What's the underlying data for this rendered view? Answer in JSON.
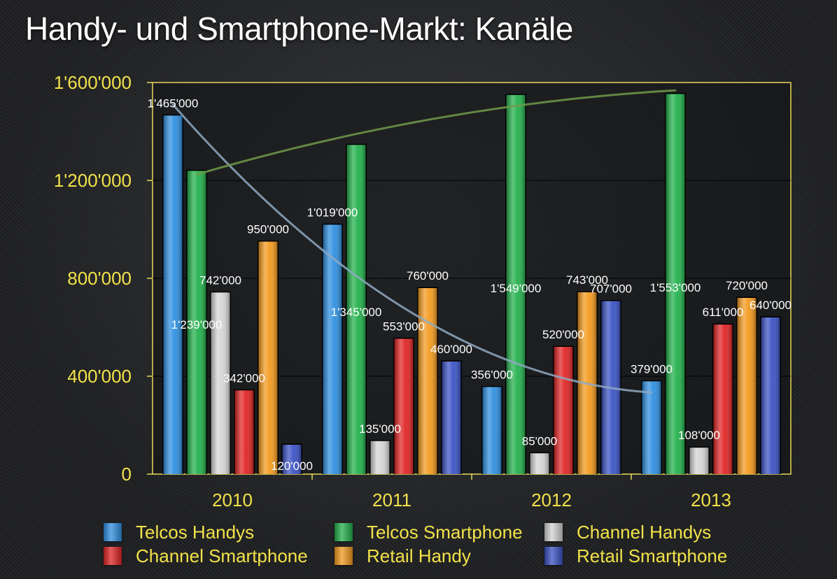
{
  "chart_data": {
    "type": "bar",
    "title": "Handy- und Smartphone-Markt: Kanäle",
    "categories": [
      "2010",
      "2011",
      "2012",
      "2013"
    ],
    "ylim": [
      0,
      1600000
    ],
    "yticks": [
      {
        "value": 0,
        "label": "0"
      },
      {
        "value": 400000,
        "label": "400'000"
      },
      {
        "value": 800000,
        "label": "800'000"
      },
      {
        "value": 1200000,
        "label": "1'200'000"
      },
      {
        "value": 1600000,
        "label": "1'600'000"
      }
    ],
    "grid": true,
    "legend_position": "bottom",
    "series": [
      {
        "name": "Telcos Handys",
        "color": "#2f8fe0",
        "values": [
          1465000,
          1019000,
          356000,
          379000
        ],
        "labels": [
          "1'465'000",
          "1'019'000",
          "356'000",
          "379'000"
        ]
      },
      {
        "name": "Telcos Smartphone",
        "color": "#22b04b",
        "values": [
          1239000,
          1345000,
          1549000,
          1553000
        ],
        "labels": [
          "1'239'000",
          "1'345'000",
          "1'549'000",
          "1'553'000"
        ]
      },
      {
        "name": "Channel Handys",
        "color": "#d4d4d4",
        "values": [
          742000,
          135000,
          85000,
          108000
        ],
        "labels": [
          "742'000",
          "135'000",
          "85'000",
          "108'000"
        ]
      },
      {
        "name": "Channel Smartphone",
        "color": "#e02424",
        "values": [
          342000,
          553000,
          520000,
          611000
        ],
        "labels": [
          "342'000",
          "553'000",
          "520'000",
          "611'000"
        ]
      },
      {
        "name": "Retail Handy",
        "color": "#f39a1e",
        "values": [
          950000,
          760000,
          743000,
          720000
        ],
        "labels": [
          "950'000",
          "760'000",
          "743'000",
          "720'000"
        ]
      },
      {
        "name": "Retail Smartphone",
        "color": "#3a52c4",
        "values": [
          120000,
          460000,
          707000,
          640000
        ],
        "labels": [
          "120'000",
          "460'000",
          "707'000",
          "640'000"
        ]
      }
    ],
    "trendlines": [
      {
        "series": "Telcos Handys",
        "color": "#8fa9c2"
      },
      {
        "series": "Telcos Smartphone",
        "color": "#6f9a4a"
      }
    ]
  }
}
